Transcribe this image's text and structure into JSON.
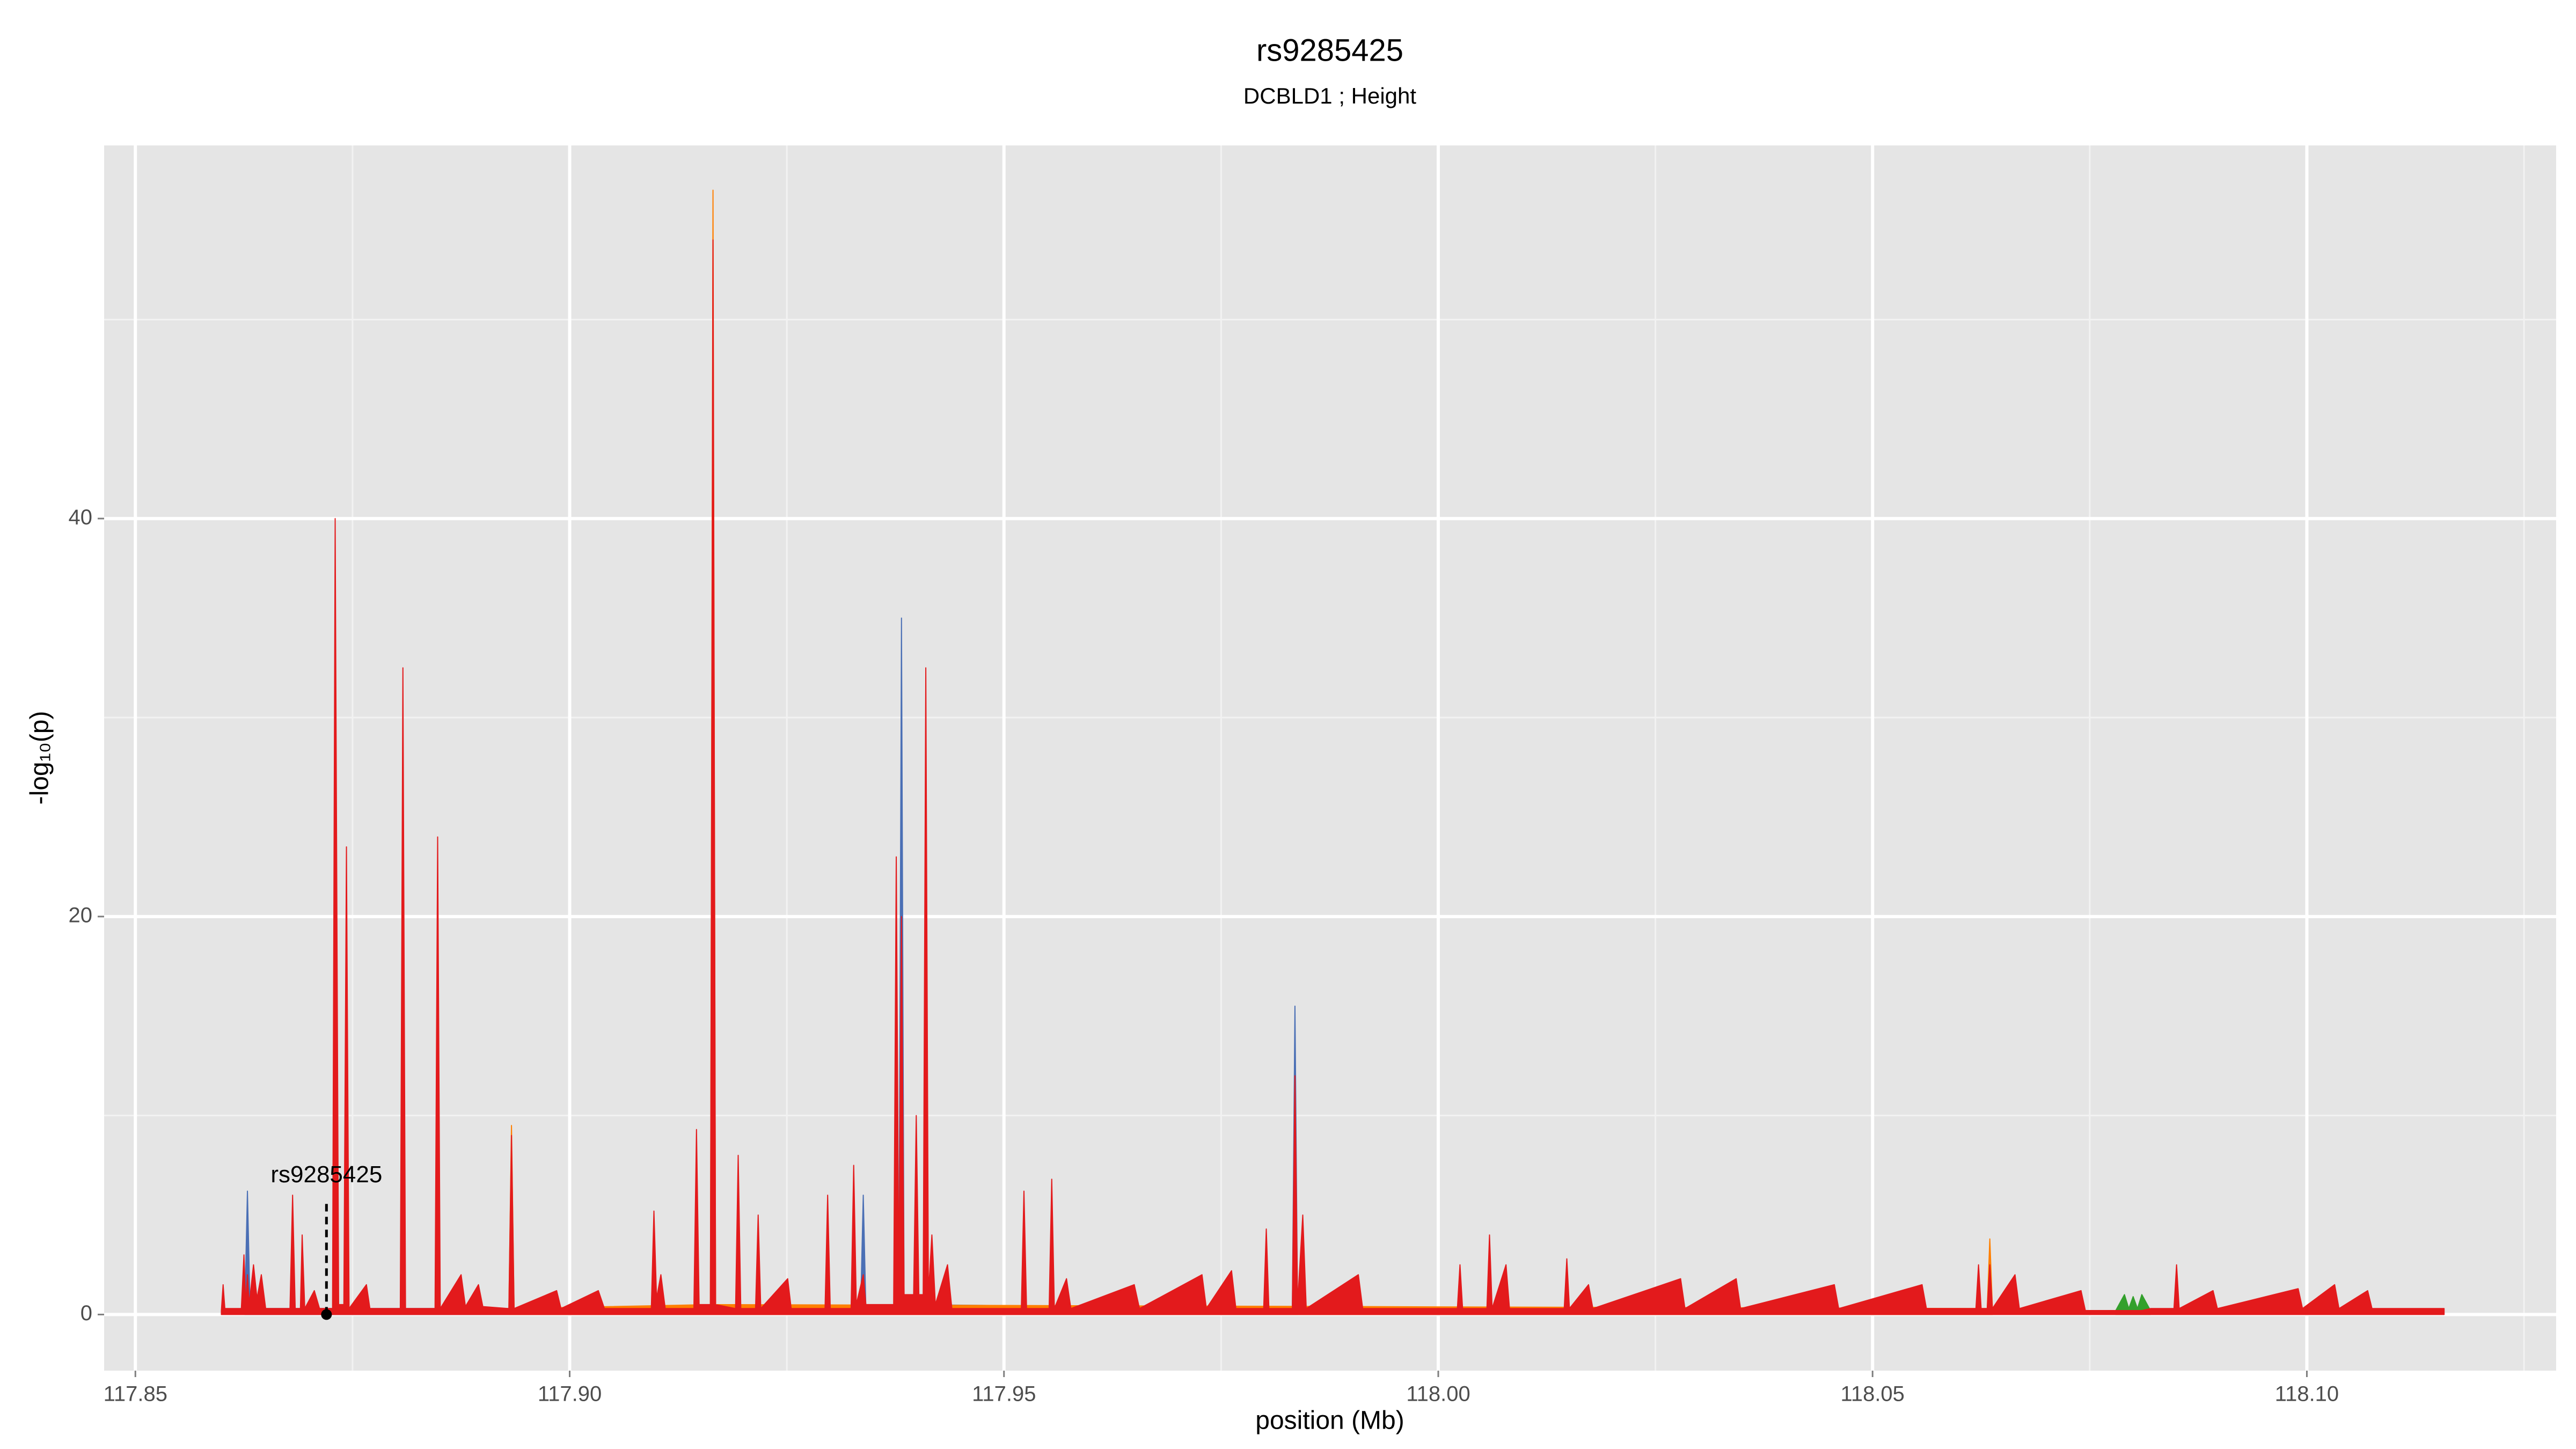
{
  "chart_data": {
    "type": "area",
    "title": "rs9285425",
    "subtitle": "DCBLD1 ; Height",
    "x_label": "position (Mb)",
    "y_label": "-log₁₀(p)",
    "xlim": [
      117.8464,
      118.1287
    ],
    "ylim": [
      -2.82,
      58.75
    ],
    "xticks": [
      117.85,
      {
        "value": 117.9,
        "label": "117.90"
      },
      117.95,
      {
        "value": 118,
        "label": "118.00"
      },
      118.05,
      {
        "value": 118.1,
        "label": "118.10"
      }
    ],
    "yticks": [
      0,
      20,
      40
    ],
    "minor_xticks": [
      117.875,
      117.925,
      117.975,
      118.025,
      118.075,
      118.125
    ],
    "minor_yticks": [
      10,
      30,
      50
    ],
    "grid": true,
    "annotation": {
      "text": "rs9285425",
      "x": 117.872,
      "y": 0
    },
    "series": [
      {
        "color": "#33a02c",
        "x": [
          118.078,
          118.079,
          118.0795,
          118.08,
          118.0805,
          118.081,
          118.082
        ],
        "values": [
          0.2,
          1.0,
          0.3,
          0.9,
          0.3,
          1.0,
          0.2
        ]
      },
      {
        "color": "#4a6fb5",
        "x": [
          117.8626,
          117.8629,
          117.8632,
          117.9335,
          117.9338,
          117.9341,
          117.9379,
          117.9382,
          117.9385,
          117.9832,
          117.9835,
          117.9838
        ],
        "values": [
          0.3,
          6.2,
          0.3,
          0.3,
          6.0,
          0.3,
          0.5,
          35.0,
          0.5,
          0.3,
          15.5,
          0.3
        ]
      },
      {
        "color": "#ff7f00",
        "x": [
          117.893,
          117.8933,
          117.8936,
          117.9162,
          117.9165,
          117.9168,
          118.0632,
          118.0635,
          118.0638
        ],
        "values": [
          0.3,
          9.5,
          0.3,
          0.5,
          56.5,
          0.5,
          0.3,
          3.8,
          0.3
        ]
      },
      {
        "color": "#e31a1c",
        "x": [
          117.8599,
          117.8601,
          117.8603,
          117.8622,
          117.8625,
          117.8627,
          117.8629,
          117.8631,
          117.8636,
          117.864,
          117.8645,
          117.865,
          117.8678,
          117.8681,
          117.8684,
          117.869,
          117.8692,
          117.8695,
          117.8706,
          117.8712,
          117.8727,
          117.873,
          117.8734,
          117.874,
          117.8743,
          117.8746,
          117.8766,
          117.877,
          117.8805,
          117.8808,
          117.8811,
          117.8845,
          117.8848,
          117.8851,
          117.8875,
          117.888,
          117.8895,
          117.89,
          117.893,
          117.8933,
          117.8936,
          117.8985,
          117.899,
          117.9033,
          117.904,
          117.9094,
          117.9097,
          117.91,
          117.9105,
          117.911,
          117.9143,
          117.9146,
          117.9149,
          117.9162,
          117.9165,
          117.9168,
          117.9191,
          117.9194,
          117.9197,
          117.9214,
          117.9217,
          117.922,
          117.9251,
          117.9255,
          117.9294,
          117.9297,
          117.93,
          117.9324,
          117.9327,
          117.933,
          117.9338,
          117.9341,
          117.9373,
          117.9376,
          117.9379,
          117.9382,
          117.9385,
          117.9396,
          117.9399,
          117.9402,
          117.9407,
          117.941,
          117.9413,
          117.9417,
          117.9421,
          117.9435,
          117.944,
          117.952,
          117.9523,
          117.9526,
          117.9552,
          117.9555,
          117.9558,
          117.9572,
          117.9577,
          117.965,
          117.9656,
          117.9728,
          117.9733,
          117.9762,
          117.9767,
          117.9799,
          117.9802,
          117.9805,
          117.9832,
          117.9835,
          117.9838,
          117.9844,
          117.9848,
          117.9908,
          117.9913,
          118.0022,
          118.0025,
          118.0028,
          118.0056,
          118.0059,
          118.0062,
          118.0078,
          118.0082,
          118.0145,
          118.0148,
          118.0151,
          118.0173,
          118.0178,
          118.0279,
          118.0284,
          118.0343,
          118.0348,
          118.0456,
          118.0461,
          118.0557,
          118.0562,
          118.0619,
          118.0622,
          118.0625,
          118.0632,
          118.0635,
          118.0638,
          118.0664,
          118.0669,
          118.074,
          118.0745,
          118.079,
          118.08,
          118.081,
          118.082,
          118.0847,
          118.085,
          118.0853,
          118.0892,
          118.0897,
          118.099,
          118.0995,
          118.1032,
          118.1037,
          118.107,
          118.1075,
          118.1158
        ],
        "values": [
          0.2,
          1.5,
          0.3,
          0.3,
          3.0,
          0.5,
          2.0,
          0.5,
          2.5,
          0.8,
          2.0,
          0.3,
          0.3,
          6.0,
          0.3,
          0.3,
          4.0,
          0.3,
          1.2,
          0.3,
          0.3,
          40.0,
          0.5,
          0.5,
          23.5,
          0.3,
          1.5,
          0.3,
          0.3,
          32.5,
          0.3,
          0.3,
          24.0,
          0.3,
          2.0,
          0.4,
          1.5,
          0.4,
          0.3,
          9.0,
          0.3,
          1.2,
          0.3,
          1.2,
          0.3,
          0.3,
          5.2,
          0.8,
          2.0,
          0.3,
          0.3,
          9.3,
          0.5,
          0.5,
          54.0,
          0.5,
          0.3,
          8.0,
          0.3,
          0.3,
          5.0,
          0.3,
          1.8,
          0.3,
          0.3,
          6.0,
          0.3,
          0.3,
          7.5,
          0.5,
          2.0,
          0.5,
          0.5,
          23.0,
          1.0,
          20.0,
          1.0,
          1.0,
          10.0,
          1.0,
          1.0,
          32.5,
          1.0,
          4.0,
          0.5,
          2.5,
          0.3,
          0.3,
          6.2,
          0.3,
          0.3,
          6.8,
          0.3,
          1.8,
          0.3,
          1.5,
          0.3,
          2.0,
          0.3,
          2.2,
          0.3,
          0.3,
          4.3,
          0.3,
          0.3,
          12.0,
          0.5,
          5.0,
          0.3,
          2.0,
          0.3,
          0.3,
          2.5,
          0.3,
          0.3,
          4.0,
          0.3,
          2.5,
          0.3,
          0.3,
          2.8,
          0.3,
          1.5,
          0.3,
          1.8,
          0.3,
          1.8,
          0.3,
          1.5,
          0.3,
          1.5,
          0.3,
          0.3,
          2.5,
          0.3,
          0.3,
          2.5,
          0.3,
          2.0,
          0.3,
          1.2,
          0.2,
          0.2,
          0.2,
          0.2,
          0.3,
          0.3,
          2.5,
          0.3,
          1.2,
          0.3,
          1.3,
          0.3,
          1.5,
          0.3,
          1.2,
          0.3,
          0.3
        ]
      }
    ]
  }
}
